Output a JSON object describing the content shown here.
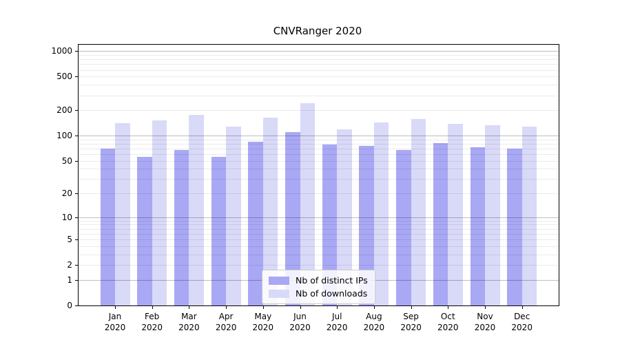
{
  "chart_data": {
    "type": "bar",
    "title": "CNVRanger 2020",
    "categories": [
      "Jan\n2020",
      "Feb\n2020",
      "Mar\n2020",
      "Apr\n2020",
      "May\n2020",
      "Jun\n2020",
      "Jul\n2020",
      "Aug\n2020",
      "Sep\n2020",
      "Oct\n2020",
      "Nov\n2020",
      "Dec\n2020"
    ],
    "series": [
      {
        "name": "Nb of distinct IPs",
        "color": "#a8a8f4",
        "values": [
          70,
          56,
          68,
          56,
          85,
          111,
          79,
          75,
          67,
          81,
          73,
          70
        ]
      },
      {
        "name": "Nb of downloads",
        "color": "#d9d9f8",
        "values": [
          140,
          151,
          177,
          127,
          163,
          242,
          118,
          143,
          158,
          139,
          133,
          129
        ]
      }
    ],
    "xlabel": "",
    "ylabel": "",
    "y_ticks": [
      0,
      1,
      2,
      5,
      10,
      20,
      50,
      100,
      200,
      500,
      1000
    ],
    "y_scale": "log10(1+value)",
    "ylim": [
      0,
      1180
    ],
    "grid": "major-and-minor-horizontal",
    "legend_position": "inside-bottom-center",
    "colors": {
      "major_gridline": "rgba(0,0,0,0.26)",
      "minor_gridline": "rgba(0,0,0,0.08)",
      "axis": "#000000",
      "background": "#ffffff"
    }
  }
}
